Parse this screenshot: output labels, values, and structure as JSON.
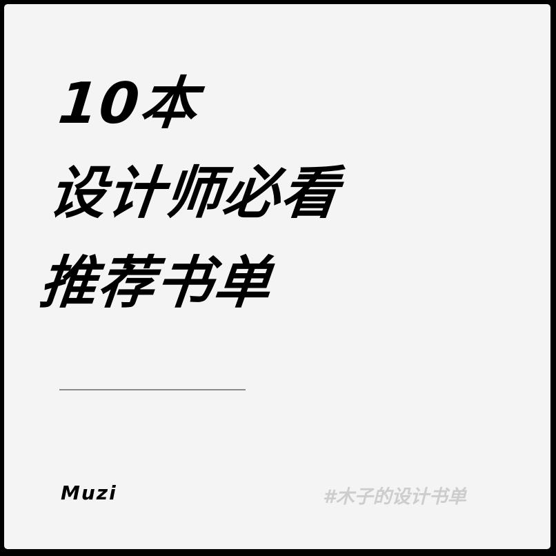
{
  "title": {
    "lines": [
      "10本",
      "设计师必看",
      "推荐书单"
    ]
  },
  "author": "Muzi",
  "hashtag": "#木子的设计书单",
  "colors": {
    "background": "#f4f4f4",
    "frame": "#000000",
    "text": "#000000",
    "divider": "#8a8a8a",
    "tag": "#cdcdcd"
  }
}
